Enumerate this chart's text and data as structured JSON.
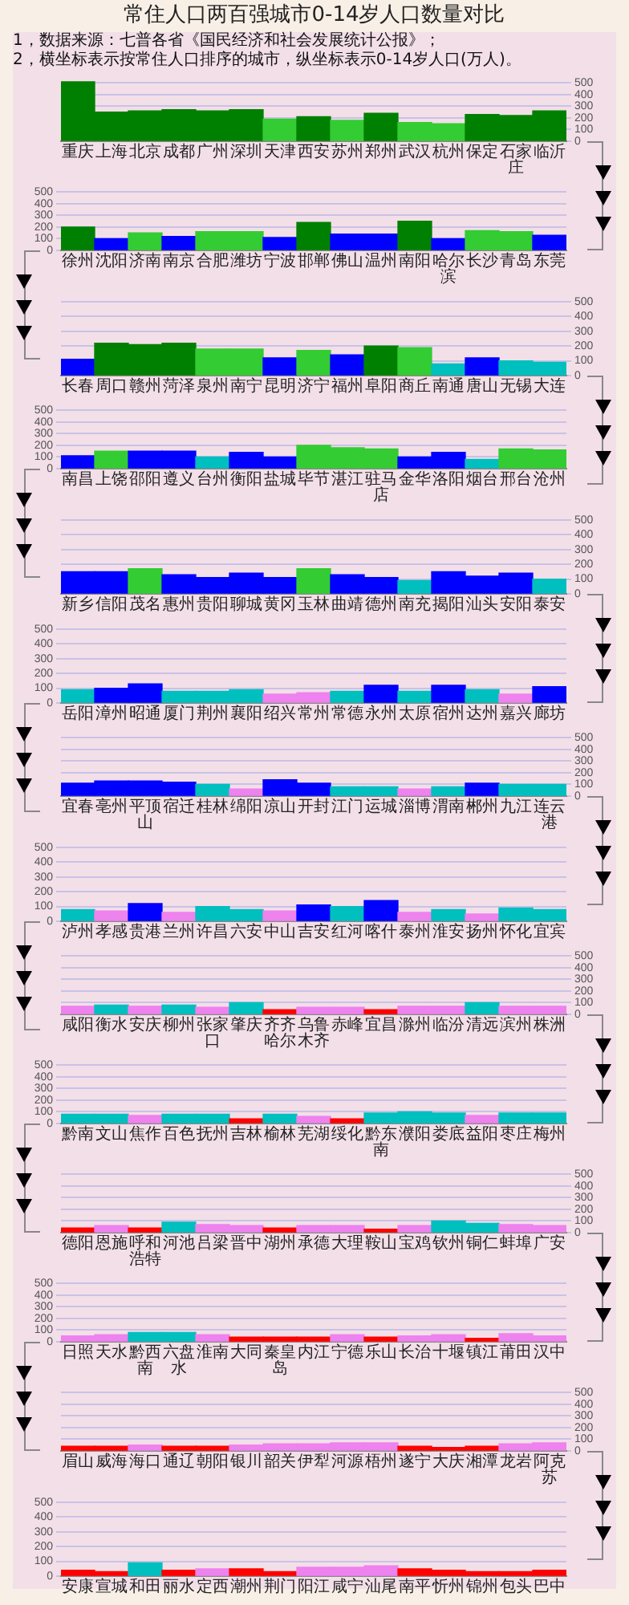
{
  "chart_data": [
    {
      "type": "bar",
      "title": "常住人口两百强城市0-14岁人口数量对比",
      "annotations": [
        "1，数据来源：七普各省《国民经济和社会发展统计公报》；",
        "2，横坐标表示按常住人口排序的城市，纵坐标表示0-14岁人口(万人)。"
      ],
      "categories": [
        "重庆",
        "上海",
        "北京",
        "成都",
        "广州",
        "深圳",
        "天津",
        "西安",
        "苏州",
        "郑州",
        "武汉",
        "杭州",
        "保定",
        "石家庄",
        "临沂"
      ],
      "values": [
        510,
        250,
        260,
        270,
        260,
        270,
        190,
        210,
        180,
        240,
        160,
        150,
        230,
        220,
        260
      ],
      "colors": [
        "#008000",
        "#008000",
        "#008000",
        "#008000",
        "#008000",
        "#008000",
        "#33cc33",
        "#008000",
        "#33cc33",
        "#008000",
        "#33cc33",
        "#33cc33",
        "#008000",
        "#008000",
        "#008000"
      ],
      "ylim": [
        0,
        520
      ],
      "yticks": [
        0,
        100,
        200,
        300,
        400,
        500
      ],
      "grid": "y"
    },
    {
      "type": "bar",
      "categories": [
        "徐州",
        "沈阳",
        "济南",
        "南京",
        "合肥",
        "潍坊",
        "宁波",
        "邯郸",
        "佛山",
        "温州",
        "南阳",
        "哈尔滨",
        "长沙",
        "青岛",
        "东莞"
      ],
      "values": [
        200,
        100,
        150,
        120,
        160,
        160,
        110,
        240,
        140,
        140,
        250,
        100,
        170,
        160,
        130
      ],
      "colors": [
        "#008000",
        "#0000ff",
        "#33cc33",
        "#0000ff",
        "#33cc33",
        "#33cc33",
        "#0000ff",
        "#008000",
        "#0000ff",
        "#0000ff",
        "#008000",
        "#0000ff",
        "#33cc33",
        "#33cc33",
        "#0000ff"
      ],
      "ylim": [
        0,
        520
      ],
      "yticks": [
        0,
        100,
        200,
        300,
        400,
        500
      ],
      "grid": "y"
    },
    {
      "type": "bar",
      "categories": [
        "长春",
        "周口",
        "赣州",
        "菏泽",
        "泉州",
        "南宁",
        "昆明",
        "济宁",
        "福州",
        "阜阳",
        "商丘",
        "南通",
        "唐山",
        "无锡",
        "大连"
      ],
      "values": [
        110,
        220,
        210,
        220,
        180,
        180,
        120,
        170,
        140,
        200,
        190,
        80,
        120,
        100,
        90
      ],
      "colors": [
        "#0000ff",
        "#008000",
        "#008000",
        "#008000",
        "#33cc33",
        "#33cc33",
        "#0000ff",
        "#33cc33",
        "#0000ff",
        "#008000",
        "#33cc33",
        "#00bfbf",
        "#0000ff",
        "#00bfbf",
        "#00bfbf"
      ],
      "ylim": [
        0,
        520
      ],
      "yticks": [
        0,
        100,
        200,
        300,
        400,
        500
      ],
      "grid": "y"
    },
    {
      "type": "bar",
      "categories": [
        "南昌",
        "上饶",
        "邵阳",
        "遵义",
        "台州",
        "衡阳",
        "盐城",
        "毕节",
        "湛江",
        "驻马店",
        "金华",
        "洛阳",
        "烟台",
        "邢台",
        "沧州"
      ],
      "values": [
        110,
        150,
        150,
        150,
        100,
        140,
        100,
        200,
        180,
        170,
        100,
        140,
        80,
        170,
        160
      ],
      "colors": [
        "#0000ff",
        "#33cc33",
        "#0000ff",
        "#0000ff",
        "#00bfbf",
        "#0000ff",
        "#0000ff",
        "#33cc33",
        "#33cc33",
        "#33cc33",
        "#0000ff",
        "#0000ff",
        "#00bfbf",
        "#33cc33",
        "#33cc33"
      ],
      "ylim": [
        0,
        520
      ],
      "yticks": [
        0,
        100,
        200,
        300,
        400,
        500
      ],
      "grid": "y"
    },
    {
      "type": "bar",
      "categories": [
        "新乡",
        "信阳",
        "茂名",
        "惠州",
        "贵阳",
        "聊城",
        "黄冈",
        "玉林",
        "曲靖",
        "德州",
        "南充",
        "揭阳",
        "汕头",
        "安阳",
        "泰安"
      ],
      "values": [
        150,
        150,
        170,
        130,
        110,
        140,
        110,
        170,
        130,
        110,
        90,
        150,
        120,
        140,
        100
      ],
      "colors": [
        "#0000ff",
        "#0000ff",
        "#33cc33",
        "#0000ff",
        "#0000ff",
        "#0000ff",
        "#0000ff",
        "#33cc33",
        "#0000ff",
        "#0000ff",
        "#00bfbf",
        "#0000ff",
        "#0000ff",
        "#0000ff",
        "#00bfbf"
      ],
      "ylim": [
        0,
        520
      ],
      "yticks": [
        0,
        100,
        200,
        300,
        400,
        500
      ],
      "grid": "y"
    },
    {
      "type": "bar",
      "categories": [
        "岳阳",
        "漳州",
        "昭通",
        "厦门",
        "荆州",
        "襄阳",
        "绍兴",
        "常州",
        "常德",
        "永州",
        "太原",
        "宿州",
        "达州",
        "嘉兴",
        "廊坊"
      ],
      "values": [
        90,
        100,
        130,
        80,
        80,
        90,
        60,
        70,
        80,
        120,
        80,
        120,
        90,
        60,
        110
      ],
      "colors": [
        "#00bfbf",
        "#0000ff",
        "#0000ff",
        "#00bfbf",
        "#00bfbf",
        "#00bfbf",
        "#ee82ee",
        "#ee82ee",
        "#00bfbf",
        "#0000ff",
        "#00bfbf",
        "#0000ff",
        "#00bfbf",
        "#ee82ee",
        "#0000ff"
      ],
      "ylim": [
        0,
        520
      ],
      "yticks": [
        0,
        100,
        200,
        300,
        400,
        500
      ],
      "grid": "y"
    },
    {
      "type": "bar",
      "categories": [
        "宜春",
        "亳州",
        "平顶山",
        "宿迁",
        "桂林",
        "绵阳",
        "凉山",
        "开封",
        "江门",
        "运城",
        "淄博",
        "渭南",
        "郴州",
        "九江",
        "连云港"
      ],
      "values": [
        110,
        130,
        130,
        120,
        100,
        60,
        140,
        110,
        80,
        80,
        60,
        80,
        110,
        100,
        100
      ],
      "colors": [
        "#0000ff",
        "#0000ff",
        "#0000ff",
        "#0000ff",
        "#00bfbf",
        "#ee82ee",
        "#0000ff",
        "#0000ff",
        "#00bfbf",
        "#00bfbf",
        "#ee82ee",
        "#00bfbf",
        "#0000ff",
        "#00bfbf",
        "#00bfbf"
      ],
      "ylim": [
        0,
        520
      ],
      "yticks": [
        0,
        100,
        200,
        300,
        400,
        500
      ],
      "grid": "y"
    },
    {
      "type": "bar",
      "categories": [
        "泸州",
        "孝感",
        "贵港",
        "兰州",
        "许昌",
        "六安",
        "中山",
        "吉安",
        "红河",
        "喀什",
        "泰州",
        "淮安",
        "扬州",
        "怀化",
        "宜宾"
      ],
      "values": [
        80,
        70,
        120,
        60,
        100,
        80,
        70,
        110,
        100,
        140,
        60,
        80,
        50,
        90,
        80
      ],
      "colors": [
        "#00bfbf",
        "#ee82ee",
        "#0000ff",
        "#ee82ee",
        "#00bfbf",
        "#00bfbf",
        "#ee82ee",
        "#0000ff",
        "#00bfbf",
        "#0000ff",
        "#ee82ee",
        "#00bfbf",
        "#ee82ee",
        "#00bfbf",
        "#00bfbf"
      ],
      "ylim": [
        0,
        520
      ],
      "yticks": [
        0,
        100,
        200,
        300,
        400,
        500
      ],
      "grid": "y"
    },
    {
      "type": "bar",
      "categories": [
        "咸阳",
        "衡水",
        "安庆",
        "柳州",
        "张家口",
        "肇庆",
        "齐齐哈尔",
        "乌鲁木齐",
        "赤峰",
        "宜昌",
        "滁州",
        "临汾",
        "清远",
        "滨州",
        "株洲"
      ],
      "values": [
        70,
        80,
        70,
        80,
        60,
        100,
        40,
        60,
        60,
        40,
        70,
        70,
        100,
        70,
        70
      ],
      "colors": [
        "#ee82ee",
        "#00bfbf",
        "#ee82ee",
        "#00bfbf",
        "#ee82ee",
        "#00bfbf",
        "#ff0000",
        "#ee82ee",
        "#ee82ee",
        "#ff0000",
        "#ee82ee",
        "#ee82ee",
        "#00bfbf",
        "#ee82ee",
        "#ee82ee"
      ],
      "ylim": [
        0,
        520
      ],
      "yticks": [
        0,
        100,
        200,
        300,
        400,
        500
      ],
      "grid": "y"
    },
    {
      "type": "bar",
      "categories": [
        "黔南",
        "文山",
        "焦作",
        "百色",
        "抚州",
        "吉林",
        "榆林",
        "芜湖",
        "绥化",
        "黔东南",
        "濮阳",
        "娄底",
        "益阳",
        "枣庄",
        "梅州"
      ],
      "values": [
        80,
        80,
        70,
        80,
        80,
        40,
        80,
        60,
        40,
        90,
        100,
        90,
        70,
        90,
        90
      ],
      "colors": [
        "#00bfbf",
        "#00bfbf",
        "#ee82ee",
        "#00bfbf",
        "#00bfbf",
        "#ff0000",
        "#00bfbf",
        "#ee82ee",
        "#ff0000",
        "#00bfbf",
        "#00bfbf",
        "#00bfbf",
        "#ee82ee",
        "#00bfbf",
        "#00bfbf"
      ],
      "ylim": [
        0,
        520
      ],
      "yticks": [
        0,
        100,
        200,
        300,
        400,
        500
      ],
      "grid": "y"
    },
    {
      "type": "bar",
      "categories": [
        "德阳",
        "恩施",
        "呼和浩特",
        "河池",
        "吕梁",
        "晋中",
        "湖州",
        "承德",
        "大理",
        "鞍山",
        "宝鸡",
        "钦州",
        "铜仁",
        "蚌埠",
        "广安"
      ],
      "values": [
        40,
        60,
        40,
        90,
        70,
        60,
        40,
        60,
        60,
        30,
        60,
        100,
        80,
        70,
        60
      ],
      "colors": [
        "#ff0000",
        "#ee82ee",
        "#ff0000",
        "#00bfbf",
        "#ee82ee",
        "#ee82ee",
        "#ff0000",
        "#ee82ee",
        "#ee82ee",
        "#ff0000",
        "#ee82ee",
        "#00bfbf",
        "#00bfbf",
        "#ee82ee",
        "#ee82ee"
      ],
      "ylim": [
        0,
        520
      ],
      "yticks": [
        0,
        100,
        200,
        300,
        400,
        500
      ],
      "grid": "y"
    },
    {
      "type": "bar",
      "categories": [
        "日照",
        "天水",
        "黔西南",
        "六盘水",
        "淮南",
        "大同",
        "秦皇岛",
        "内江",
        "宁德",
        "乐山",
        "长治",
        "十堰",
        "镇江",
        "莆田",
        "汉中"
      ],
      "values": [
        50,
        60,
        80,
        80,
        60,
        40,
        40,
        40,
        60,
        40,
        50,
        60,
        30,
        70,
        50
      ],
      "colors": [
        "#ee82ee",
        "#ee82ee",
        "#00bfbf",
        "#00bfbf",
        "#ee82ee",
        "#ff0000",
        "#ff0000",
        "#ff0000",
        "#ee82ee",
        "#ff0000",
        "#ee82ee",
        "#ee82ee",
        "#ff0000",
        "#ee82ee",
        "#ee82ee"
      ],
      "ylim": [
        0,
        520
      ],
      "yticks": [
        0,
        100,
        200,
        300,
        400,
        500
      ],
      "grid": "y"
    },
    {
      "type": "bar",
      "categories": [
        "眉山",
        "威海",
        "海口",
        "通辽",
        "朝阳",
        "银川",
        "韶关",
        "伊犁",
        "河源",
        "梧州",
        "遂宁",
        "大庆",
        "湘潭",
        "龙岩",
        "阿克苏"
      ],
      "values": [
        40,
        40,
        50,
        40,
        40,
        50,
        60,
        60,
        70,
        70,
        40,
        30,
        40,
        60,
        70
      ],
      "colors": [
        "#ff0000",
        "#ff0000",
        "#ee82ee",
        "#ff0000",
        "#ff0000",
        "#ee82ee",
        "#ee82ee",
        "#ee82ee",
        "#ee82ee",
        "#ee82ee",
        "#ff0000",
        "#ff0000",
        "#ff0000",
        "#ee82ee",
        "#ee82ee"
      ],
      "ylim": [
        0,
        520
      ],
      "yticks": [
        0,
        100,
        200,
        300,
        400,
        500
      ],
      "grid": "y"
    },
    {
      "type": "bar",
      "categories": [
        "安康",
        "宣城",
        "和田",
        "丽水",
        "定西",
        "潮州",
        "荆门",
        "阳江",
        "咸宁",
        "汕尾",
        "南平",
        "忻州",
        "锦州",
        "包头",
        "巴中"
      ],
      "values": [
        40,
        30,
        90,
        40,
        50,
        50,
        30,
        60,
        60,
        70,
        50,
        40,
        30,
        30,
        40
      ],
      "colors": [
        "#ff0000",
        "#ff0000",
        "#00bfbf",
        "#ff0000",
        "#ee82ee",
        "#ff0000",
        "#ff0000",
        "#ee82ee",
        "#ee82ee",
        "#ee82ee",
        "#ff0000",
        "#ff0000",
        "#ff0000",
        "#ff0000",
        "#ff0000"
      ],
      "ylim": [
        0,
        520
      ],
      "yticks": [
        0,
        100,
        200,
        300,
        400,
        500
      ],
      "grid": "y"
    }
  ]
}
